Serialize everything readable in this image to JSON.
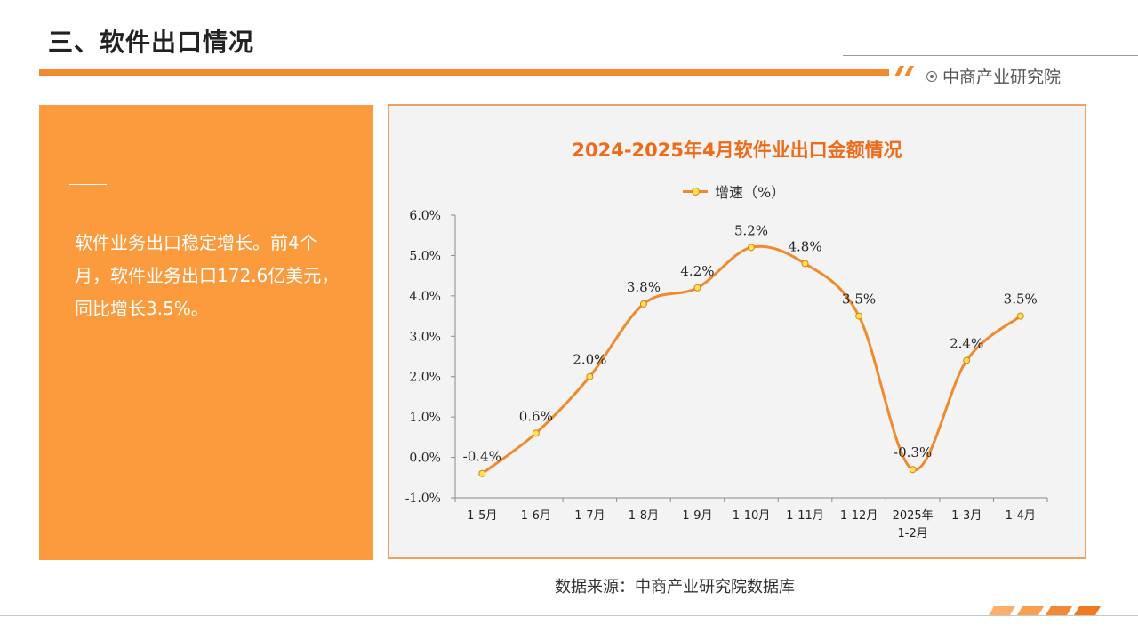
{
  "header": {
    "title": "三、软件出口情况",
    "brand": "中商产业研究院"
  },
  "panel": {
    "text": "软件业务出口稳定增长。前4个月，软件业务出口172.6亿美元，同比增长3.5%。"
  },
  "footer": {
    "source": "数据来源：中商产业研究院数据库"
  },
  "colors": {
    "accent": "#f08a2c",
    "panel_bg": "#fb9b3e",
    "title_orange": "#f06a1a",
    "marker_fill": "#ffe54c"
  },
  "chart_data": {
    "type": "line",
    "title": "2024-2025年4月软件业出口金额情况",
    "legend": "增速（%）",
    "legend_position": "top-center",
    "categories": [
      "1-5月",
      "1-6月",
      "1-7月",
      "1-8月",
      "1-9月",
      "1-10月",
      "1-11月",
      "1-12月",
      "2025年\n1-2月",
      "1-3月",
      "1-4月"
    ],
    "series": [
      {
        "name": "增速（%）",
        "values": [
          -0.4,
          0.6,
          2.0,
          3.8,
          4.2,
          5.2,
          4.8,
          3.5,
          -0.3,
          2.4,
          3.5
        ],
        "labels": [
          "-0.4%",
          "0.6%",
          "2.0%",
          "3.8%",
          "4.2%",
          "5.2%",
          "4.8%",
          "3.5%",
          "-0.3%",
          "2.4%",
          "3.5%"
        ]
      }
    ],
    "y_ticks": [
      "-1.0%",
      "0.0%",
      "1.0%",
      "2.0%",
      "3.0%",
      "4.0%",
      "5.0%",
      "6.0%"
    ],
    "ylim": [
      -1.0,
      6.0
    ],
    "grid": false,
    "smooth": true
  }
}
